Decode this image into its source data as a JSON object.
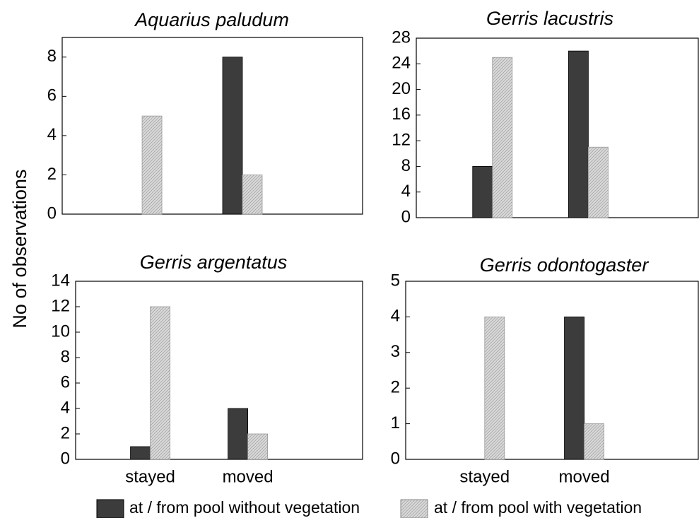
{
  "ylabel": "No of observations",
  "chart_data": [
    {
      "type": "bar",
      "title": "Aquarius paludum",
      "categories": [
        null,
        null
      ],
      "series": [
        {
          "name": "at / from pool without vegetation",
          "color": "#3c3c3c",
          "values": [
            0,
            8
          ]
        },
        {
          "name": "at / from pool with vegetation",
          "color": "#d8d8d8",
          "hatch": true,
          "values": [
            5,
            2
          ]
        }
      ],
      "ylim": [
        0,
        9
      ],
      "yticks": [
        0,
        2,
        4,
        6,
        8
      ]
    },
    {
      "type": "bar",
      "title": "Gerris lacustris",
      "categories": [
        null,
        null
      ],
      "series": [
        {
          "name": "at / from pool without vegetation",
          "color": "#3c3c3c",
          "values": [
            8,
            26
          ]
        },
        {
          "name": "at / from pool with vegetation",
          "color": "#d8d8d8",
          "hatch": true,
          "values": [
            25,
            11
          ]
        }
      ],
      "ylim": [
        0,
        28
      ],
      "yticks": [
        0,
        4,
        8,
        12,
        16,
        20,
        24,
        28
      ]
    },
    {
      "type": "bar",
      "title": "Gerris argentatus",
      "categories": [
        "stayed",
        "moved"
      ],
      "series": [
        {
          "name": "at / from pool without vegetation",
          "color": "#3c3c3c",
          "values": [
            1,
            4
          ]
        },
        {
          "name": "at / from pool with vegetation",
          "color": "#d8d8d8",
          "hatch": true,
          "values": [
            12,
            2
          ]
        }
      ],
      "ylim": [
        0,
        14
      ],
      "yticks": [
        0,
        2,
        4,
        6,
        8,
        10,
        12,
        14
      ]
    },
    {
      "type": "bar",
      "title": "Gerris odontogaster",
      "categories": [
        "stayed",
        "moved"
      ],
      "series": [
        {
          "name": "at / from pool without vegetation",
          "color": "#3c3c3c",
          "values": [
            0,
            4
          ]
        },
        {
          "name": "at / from pool with vegetation",
          "color": "#d8d8d8",
          "hatch": true,
          "values": [
            4,
            1
          ]
        }
      ],
      "ylim": [
        0,
        5
      ],
      "yticks": [
        0,
        1,
        2,
        3,
        4,
        5
      ]
    }
  ]
}
